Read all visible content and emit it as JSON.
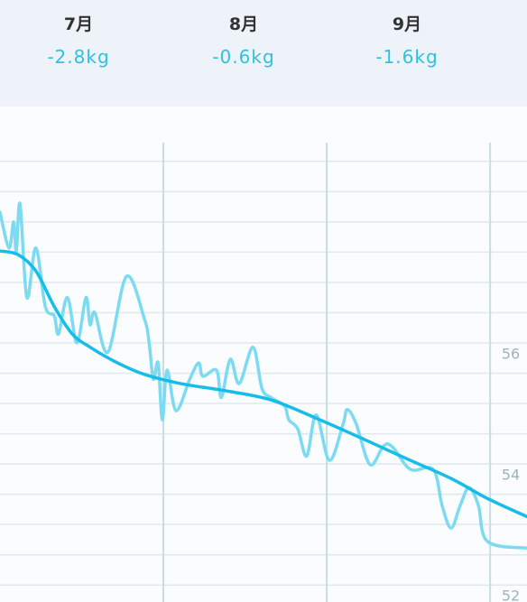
{
  "header": {
    "months": [
      {
        "label": "7月",
        "change": "-2.8kg"
      },
      {
        "label": "8月",
        "change": "-0.6kg"
      },
      {
        "label": "9月",
        "change": "-1.6kg"
      }
    ]
  },
  "chart_data": {
    "type": "line",
    "xlim": [
      0,
      100
    ],
    "xticks": [
      31,
      62,
      93
    ],
    "ylim": [
      51.72,
      59.31
    ],
    "yticks": [
      52,
      54,
      56
    ],
    "ygrid": [
      52,
      52.5,
      53,
      53.5,
      54,
      54.5,
      55,
      55.5,
      56,
      56.5,
      57,
      57.5,
      58,
      58.5,
      59
    ],
    "series": [
      {
        "color": "#7ddbf1",
        "x": [
          0,
          1.7,
          2.6,
          3.1,
          3.8,
          5.1,
          6.8,
          8.6,
          10.3,
          11.1,
          12.8,
          14.6,
          16.3,
          17.1,
          18,
          20.5,
          24,
          27.4,
          28.3,
          29.1,
          30,
          30.8,
          31.7,
          33.4,
          36,
          37.7,
          38.5,
          41.1,
          42,
          43.7,
          45.4,
          48,
          49.7,
          51.4,
          54,
          54.8,
          56.5,
          58.2,
          60,
          62.5,
          65.1,
          65.9,
          67.6,
          70.2,
          72.8,
          74.5,
          77.9,
          82.2,
          83.9,
          85.6,
          87.3,
          89,
          90.8,
          92.5,
          100
        ],
        "values": [
          58.16,
          57.57,
          58.0,
          57.5,
          58.3,
          56.75,
          57.57,
          56.6,
          56.45,
          56.15,
          56.75,
          56.0,
          56.75,
          56.3,
          56.5,
          55.85,
          57.1,
          56.4,
          56.0,
          55.4,
          55.67,
          54.73,
          55.55,
          54.88,
          55.4,
          55.67,
          55.45,
          55.55,
          55.1,
          55.73,
          55.33,
          55.93,
          55.25,
          55.1,
          54.96,
          54.73,
          54.58,
          54.13,
          54.81,
          54.06,
          54.66,
          54.9,
          54.66,
          53.99,
          54.3,
          54.28,
          53.91,
          53.91,
          53.31,
          52.94,
          53.31,
          53.61,
          53.31,
          52.72,
          52.61
        ]
      },
      {
        "color": "#17bde9",
        "x": [
          0,
          3.4,
          6.8,
          10.3,
          13.7,
          17.1,
          22.3,
          27.4,
          34.2,
          42.8,
          51.4,
          59.9,
          68.5,
          77.1,
          85.6,
          92.5,
          100
        ],
        "values": [
          57.52,
          57.46,
          57.19,
          56.6,
          56.15,
          55.93,
          55.67,
          55.48,
          55.33,
          55.21,
          55.06,
          54.76,
          54.43,
          54.09,
          53.76,
          53.43,
          53.13
        ]
      }
    ]
  }
}
